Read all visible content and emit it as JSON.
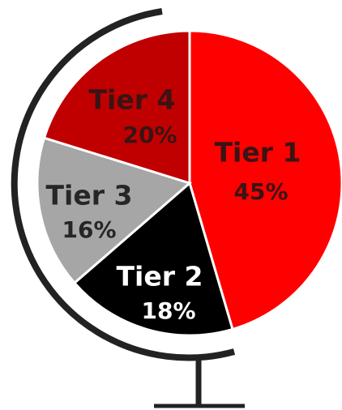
{
  "chart_data": {
    "type": "pie",
    "categories": [
      "Tier 1",
      "Tier 2",
      "Tier 3",
      "Tier 4"
    ],
    "values": [
      45,
      18,
      16,
      20
    ],
    "value_labels": [
      "45%",
      "18%",
      "16%",
      "20%"
    ],
    "colors": [
      "#ff0000",
      "#000000",
      "#a6a6a6",
      "#c00000"
    ],
    "label_colors": [
      "#3a1414",
      "#ffffff",
      "#262626",
      "#3a1414"
    ]
  }
}
